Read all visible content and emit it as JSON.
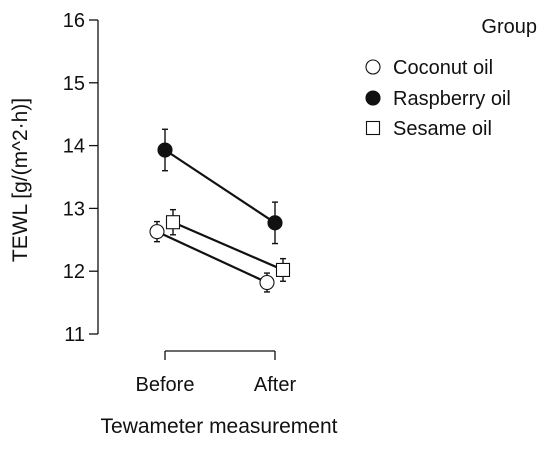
{
  "chart_data": {
    "type": "line",
    "xlabel": "Tewameter measurement",
    "ylabel": "TEWL [g/(m^2·h)]",
    "categories": [
      "Before",
      "After"
    ],
    "ylim": [
      11,
      16
    ],
    "yticks": [
      11,
      12,
      13,
      14,
      15,
      16
    ],
    "legend": {
      "title": "Group",
      "placement": "right"
    },
    "series": [
      {
        "name": "Coconut oil",
        "marker": "open-circle",
        "values": [
          12.63,
          11.82
        ],
        "errors": [
          0.16,
          0.15
        ]
      },
      {
        "name": "Raspberry oil",
        "marker": "filled-circle",
        "values": [
          13.93,
          12.77
        ],
        "errors": [
          0.33,
          0.33
        ]
      },
      {
        "name": "Sesame oil",
        "marker": "open-square",
        "values": [
          12.78,
          12.02
        ],
        "errors": [
          0.2,
          0.18
        ]
      }
    ],
    "colors": {
      "line": "#111111",
      "fill_open": "#ffffff",
      "fill_solid": "#111111"
    }
  }
}
